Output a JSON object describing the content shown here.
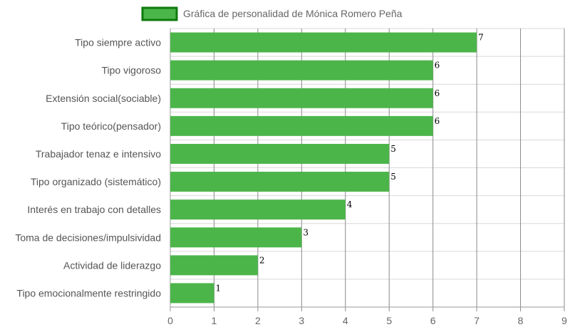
{
  "chart_data": {
    "type": "bar",
    "orientation": "horizontal",
    "legend_position": "top",
    "grid": true,
    "xlim": [
      0,
      9
    ],
    "x_ticks": [
      "0",
      "1",
      "2",
      "3",
      "4",
      "5",
      "6",
      "7",
      "8",
      "9"
    ],
    "colors": {
      "bar_fill": "#4cb54a",
      "legend_fill": "#4cb54a",
      "legend_border": "#0e7a0d",
      "grid": "#d9d9d9",
      "grid_vertical": "#8a8a8a",
      "axis": "#999999"
    },
    "categories": [
      "Tipo siempre activo",
      "Tipo vigoroso",
      "Extensión social(sociable)",
      "Tipo teórico(pensador)",
      "Trabajador tenaz e intensivo",
      "Tipo organizado (sistemático)",
      "Interés en trabajo con detalles",
      "Toma de decisiones/impulsividad",
      "Actividad de liderazgo",
      "Tipo emocionalmente restringido"
    ],
    "series": [
      {
        "name": "Gráfica de personalidad de Mónica Romero Peña",
        "values": [
          7,
          6,
          6,
          6,
          5,
          5,
          4,
          3,
          2,
          1
        ]
      }
    ]
  }
}
